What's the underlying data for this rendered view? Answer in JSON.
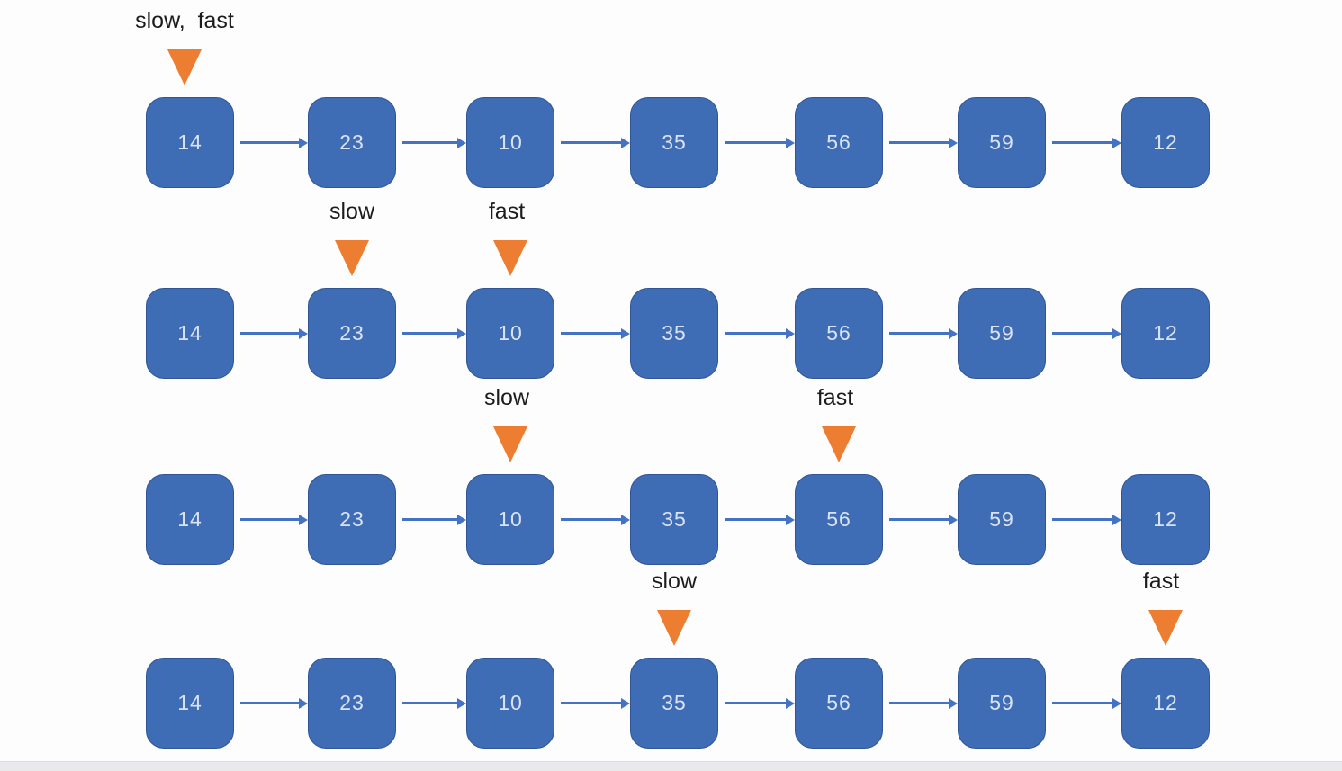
{
  "colors": {
    "background": "#fdfdfd",
    "node_fill": "#3e6cb5",
    "node_border": "#2f5597",
    "node_text": "#dae3f3",
    "arrow": "#4472c4",
    "pointer": "#ed7d31",
    "label_text": "#1c1c1c",
    "bottom_bar": "#e9e9ec"
  },
  "diagram": {
    "node_values": [
      "14",
      "23",
      "10",
      "35",
      "56",
      "59",
      "12"
    ],
    "rows": [
      {
        "pointers": [
          {
            "text": "slow,  fast",
            "points_to_index": 0,
            "points_to_value": "14"
          }
        ]
      },
      {
        "pointers": [
          {
            "text": "slow",
            "points_to_index": 1,
            "points_to_value": "23"
          },
          {
            "text": "fast",
            "points_to_index": 2,
            "points_to_value": "10"
          }
        ]
      },
      {
        "pointers": [
          {
            "text": "slow",
            "points_to_index": 2,
            "points_to_value": "10"
          },
          {
            "text": "fast",
            "points_to_index": 4,
            "points_to_value": "56"
          }
        ]
      },
      {
        "pointers": [
          {
            "text": "slow",
            "points_to_index": 3,
            "points_to_value": "35"
          },
          {
            "text": "fast",
            "points_to_index": 6,
            "points_to_value": "12"
          }
        ]
      }
    ]
  }
}
